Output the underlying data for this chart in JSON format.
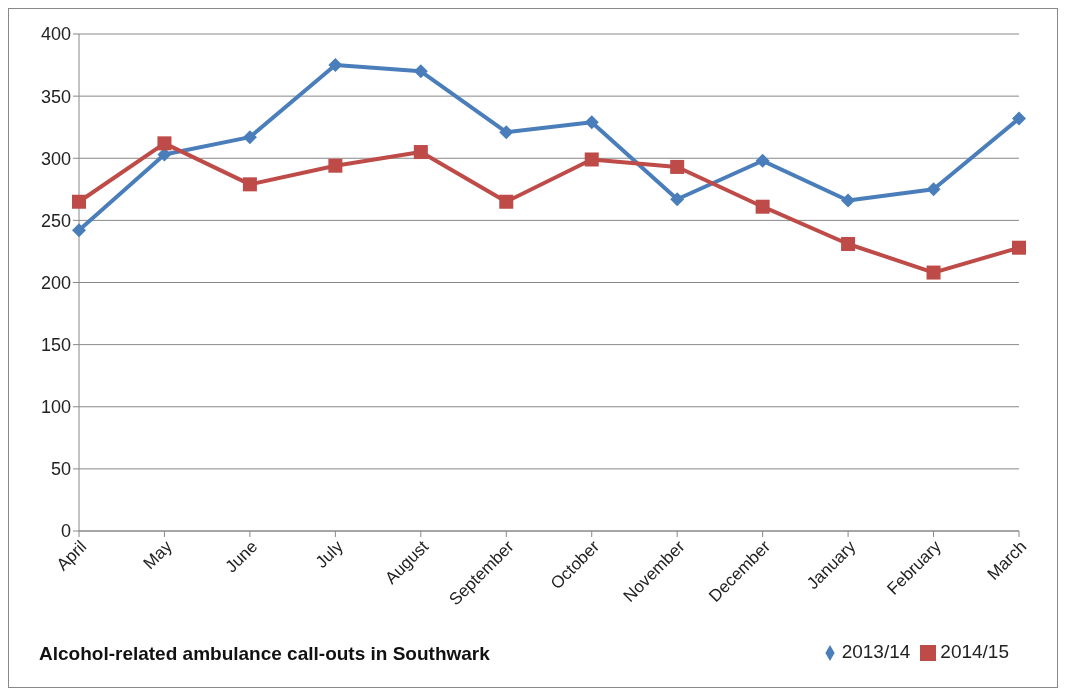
{
  "chart_data": {
    "type": "line",
    "title": "Alcohol-related ambulance call-outs in Southwark",
    "categories": [
      "April",
      "May",
      "June",
      "July",
      "August",
      "September",
      "October",
      "November",
      "December",
      "January",
      "February",
      "March"
    ],
    "series": [
      {
        "name": "2013/14",
        "color": "#4a7ebb",
        "marker": "diamond",
        "values": [
          242,
          303,
          317,
          375,
          370,
          321,
          329,
          267,
          298,
          266,
          275,
          332
        ]
      },
      {
        "name": "2014/15",
        "color": "#be4b48",
        "marker": "square",
        "values": [
          265,
          312,
          279,
          294,
          305,
          265,
          299,
          293,
          261,
          231,
          208,
          228
        ]
      }
    ],
    "ylim": [
      0,
      400
    ],
    "yticks": [
      0,
      50,
      100,
      150,
      200,
      250,
      300,
      350,
      400
    ],
    "grid": "y",
    "legend": "bottom right",
    "line_style": "solid"
  }
}
